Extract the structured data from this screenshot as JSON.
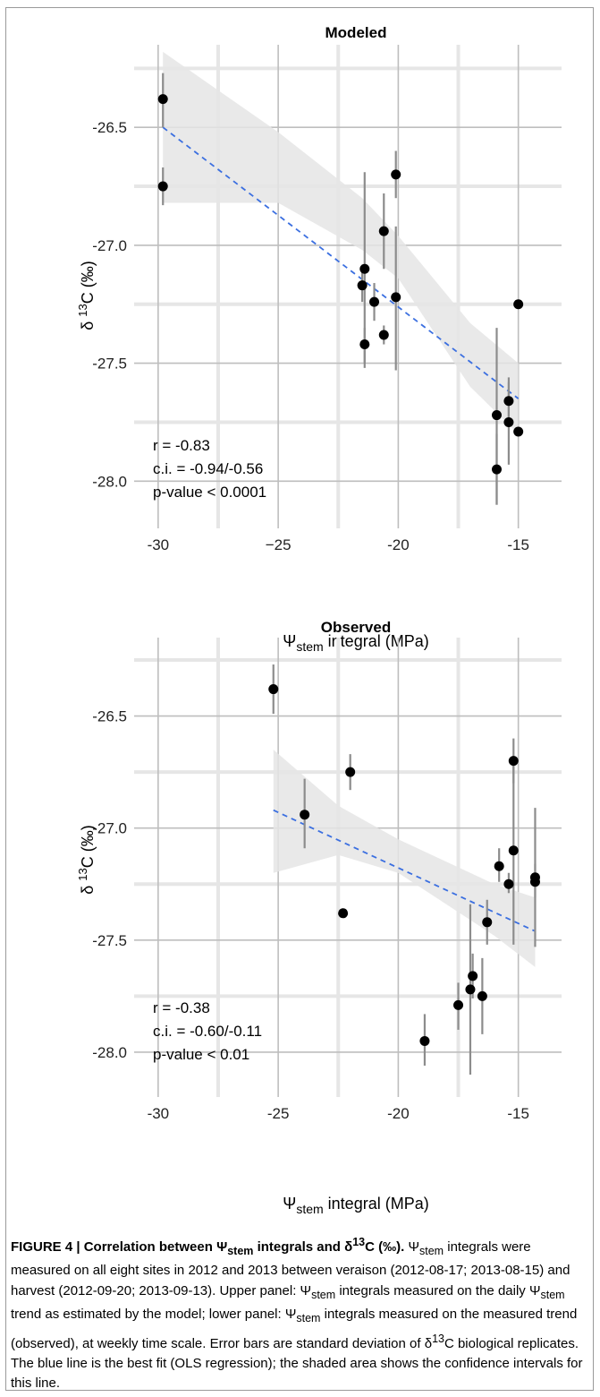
{
  "figure_caption": {
    "heading": "FIGURE 4 | Correlation between Ψ",
    "heading_sub": "stem",
    "heading_rest": " integrals and δ",
    "heading_sup": "13",
    "heading_end": "C (‰).",
    "body_1": " Ψ",
    "body_1_sub": "stem",
    "body_2": " integrals were measured on all eight sites in 2012 and 2013 between veraison (2012-08-17; 2013-08-15) and harvest (2012-09-20; 2013-09-13). Upper panel: Ψ",
    "body_2_sub": "stem",
    "body_3": " integrals measured on the daily Ψ",
    "body_3_sub": "stem",
    "body_4": " trend as estimated by the model; lower panel: Ψ",
    "body_4_sub": "stem",
    "body_5": " integrals measured on the measured trend (observed), at weekly time scale. Error bars are standard deviation of δ",
    "body_5_sup": "13",
    "body_6": "C biological replicates. The blue line is the best fit (OLS regression); the shaded area shows the confidence intervals for this line."
  },
  "colors": {
    "points": "#000000",
    "errorbars": "#8c8c8c",
    "fit_line": "#3b6fe0",
    "ci_band": "#e5e5e5",
    "grid_major": "#bebebe",
    "grid_minor": "#e6e6e6"
  },
  "chart_data": [
    {
      "type": "scatter",
      "title": "Modeled",
      "xlabel_main": "Ψ",
      "xlabel_sub": "stem",
      "xlabel_rest": " integral (MPa)",
      "ylabel_pre": "δ ",
      "ylabel_sup": "13",
      "ylabel_post": "C (‰)",
      "xlim": [
        -31,
        -13.2
      ],
      "ylim": [
        -28.2,
        -26.15
      ],
      "xticks": [
        -30,
        -25,
        -20,
        -15
      ],
      "xtick_labels": [
        "-30",
        "−25",
        "-20",
        "-15"
      ],
      "yticks": [
        -26.5,
        -27.0,
        -27.5,
        -28.0
      ],
      "ytick_labels": [
        "-26.5",
        "-27.0",
        "-27.5",
        "-28.0"
      ],
      "stats": [
        "r = -0.83",
        "c.i. = -0.94/-0.56",
        "p-value < 0.0001"
      ],
      "points": [
        {
          "x": -29.8,
          "y": -26.38,
          "ylo": -26.27,
          "yhi": -26.5
        },
        {
          "x": -29.8,
          "y": -26.75,
          "ylo": -26.67,
          "yhi": -26.83
        },
        {
          "x": -21.5,
          "y": -27.17,
          "ylo": -27.1,
          "yhi": -27.24
        },
        {
          "x": -21.4,
          "y": -27.1,
          "ylo": -26.69,
          "yhi": -27.52
        },
        {
          "x": -21.4,
          "y": -27.42,
          "ylo": -27.35,
          "yhi": -27.5
        },
        {
          "x": -21.0,
          "y": -27.24,
          "ylo": -27.16,
          "yhi": -27.32
        },
        {
          "x": -20.6,
          "y": -26.94,
          "ylo": -26.78,
          "yhi": -27.1
        },
        {
          "x": -20.6,
          "y": -27.38,
          "ylo": -27.34,
          "yhi": -27.42
        },
        {
          "x": -20.1,
          "y": -26.7,
          "ylo": -26.6,
          "yhi": -26.8
        },
        {
          "x": -20.1,
          "y": -27.22,
          "ylo": -26.92,
          "yhi": -27.53
        },
        {
          "x": -15.9,
          "y": -27.72,
          "ylo": -27.35,
          "yhi": -28.1
        },
        {
          "x": -15.9,
          "y": -27.95,
          "ylo": -27.8,
          "yhi": -28.1
        },
        {
          "x": -15.4,
          "y": -27.66,
          "ylo": -27.56,
          "yhi": -27.76
        },
        {
          "x": -15.4,
          "y": -27.75,
          "ylo": -27.58,
          "yhi": -27.93
        },
        {
          "x": -15.0,
          "y": -27.25,
          "ylo": -27.25,
          "yhi": -27.25
        },
        {
          "x": -15.0,
          "y": -27.79,
          "ylo": -27.79,
          "yhi": -27.79
        }
      ],
      "fit": {
        "x": [
          -29.8,
          -15.0
        ],
        "y": [
          -26.5,
          -27.65
        ]
      },
      "ci_upper": [
        [
          -29.8,
          -26.18
        ],
        [
          -25,
          -26.52
        ],
        [
          -21.5,
          -26.8
        ],
        [
          -20,
          -26.96
        ],
        [
          -17,
          -27.33
        ],
        [
          -15,
          -27.5
        ]
      ],
      "ci_lower": [
        [
          -29.8,
          -26.82
        ],
        [
          -25,
          -26.82
        ],
        [
          -21.5,
          -27.02
        ],
        [
          -20,
          -27.14
        ],
        [
          -17,
          -27.6
        ],
        [
          -15,
          -27.8
        ]
      ]
    },
    {
      "type": "scatter",
      "title": "Observed",
      "xlabel_main": "Ψ",
      "xlabel_sub": "stem",
      "xlabel_rest": " integral (MPa)",
      "ylabel_pre": "δ ",
      "ylabel_sup": "13",
      "ylabel_post": "C (‰)",
      "xlim": [
        -31,
        -13.2
      ],
      "ylim": [
        -28.2,
        -26.15
      ],
      "xticks": [
        -30,
        -25,
        -20,
        -15
      ],
      "xtick_labels": [
        "-30",
        "-25",
        "-20",
        "-15"
      ],
      "yticks": [
        -26.5,
        -27.0,
        -27.5,
        -28.0
      ],
      "ytick_labels": [
        "-26.5",
        "-27.0",
        "-27.5",
        "-28.0"
      ],
      "stats": [
        "r = -0.38",
        "c.i. = -0.60/-0.11",
        "p-value < 0.01"
      ],
      "points": [
        {
          "x": -25.2,
          "y": -26.38,
          "ylo": -26.27,
          "yhi": -26.49
        },
        {
          "x": -23.9,
          "y": -26.94,
          "ylo": -26.78,
          "yhi": -27.09
        },
        {
          "x": -22.0,
          "y": -26.75,
          "ylo": -26.67,
          "yhi": -26.83
        },
        {
          "x": -22.3,
          "y": -27.38,
          "ylo": -27.36,
          "yhi": -27.4
        },
        {
          "x": -18.9,
          "y": -27.95,
          "ylo": -27.83,
          "yhi": -28.06
        },
        {
          "x": -17.5,
          "y": -27.79,
          "ylo": -27.69,
          "yhi": -27.9
        },
        {
          "x": -17.0,
          "y": -27.72,
          "ylo": -27.34,
          "yhi": -28.1
        },
        {
          "x": -16.9,
          "y": -27.66,
          "ylo": -27.56,
          "yhi": -27.76
        },
        {
          "x": -16.5,
          "y": -27.75,
          "ylo": -27.58,
          "yhi": -27.92
        },
        {
          "x": -16.3,
          "y": -27.42,
          "ylo": -27.32,
          "yhi": -27.52
        },
        {
          "x": -15.8,
          "y": -27.17,
          "ylo": -27.09,
          "yhi": -27.24
        },
        {
          "x": -15.4,
          "y": -27.25,
          "ylo": -27.2,
          "yhi": -27.29
        },
        {
          "x": -15.2,
          "y": -26.7,
          "ylo": -26.6,
          "yhi": -26.8
        },
        {
          "x": -15.2,
          "y": -27.1,
          "ylo": -26.69,
          "yhi": -27.52
        },
        {
          "x": -14.3,
          "y": -27.22,
          "ylo": -26.91,
          "yhi": -27.53
        },
        {
          "x": -14.3,
          "y": -27.24,
          "ylo": -27.16,
          "yhi": -27.31
        }
      ],
      "fit": {
        "x": [
          -25.2,
          -14.3
        ],
        "y": [
          -26.92,
          -27.46
        ]
      },
      "ci_upper": [
        [
          -25.2,
          -26.65
        ],
        [
          -22.5,
          -26.9
        ],
        [
          -20,
          -27.05
        ],
        [
          -18,
          -27.15
        ],
        [
          -16,
          -27.25
        ],
        [
          -14.3,
          -27.31
        ]
      ],
      "ci_lower": [
        [
          -25.2,
          -27.2
        ],
        [
          -22.5,
          -27.12
        ],
        [
          -20,
          -27.2
        ],
        [
          -18,
          -27.34
        ],
        [
          -16,
          -27.48
        ],
        [
          -14.3,
          -27.62
        ]
      ]
    }
  ]
}
